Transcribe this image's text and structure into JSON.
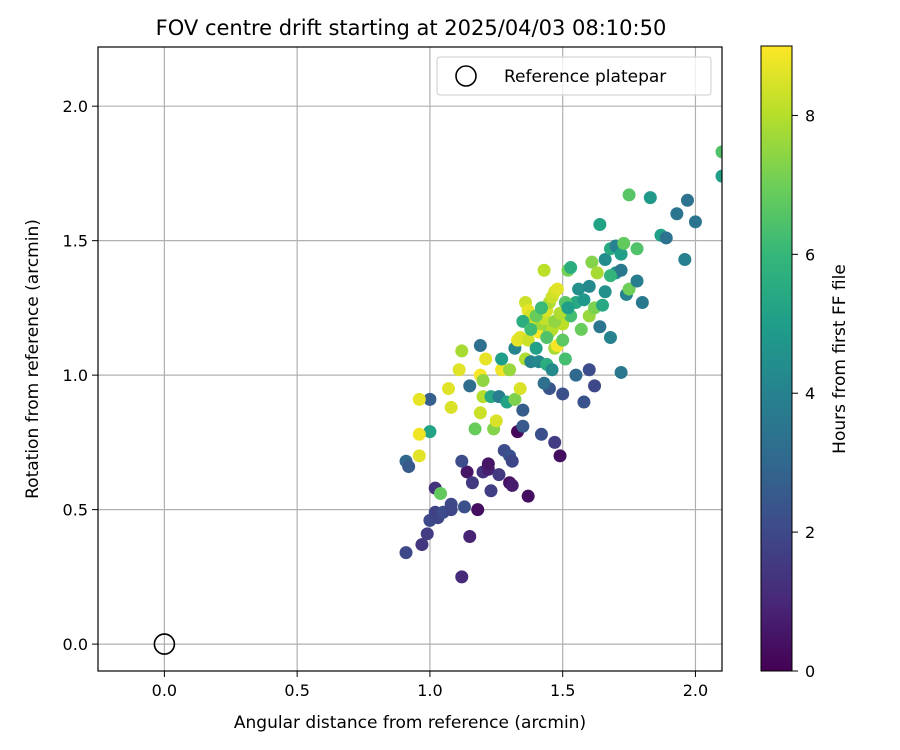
{
  "chart_data": {
    "type": "scatter",
    "title": "FOV centre drift starting at 2025/04/03 08:10:50",
    "xlabel": "Angular distance from reference (arcmin)",
    "ylabel": "Rotation from reference (arcmin)",
    "xlim": [
      -0.25,
      2.1
    ],
    "ylim": [
      -0.1,
      2.22
    ],
    "xticks": [
      0.0,
      0.5,
      1.0,
      1.5,
      2.0
    ],
    "yticks": [
      0.0,
      0.5,
      1.0,
      1.5,
      2.0
    ],
    "xtick_labels": [
      "0.0",
      "0.5",
      "1.0",
      "1.5",
      "2.0"
    ],
    "ytick_labels": [
      "0.0",
      "0.5",
      "1.0",
      "1.5",
      "2.0"
    ],
    "grid": true,
    "colormap": "viridis",
    "colorbar": {
      "label": "Hours from first FF file",
      "range": [
        0,
        9
      ],
      "ticks": [
        0,
        2,
        4,
        6,
        8
      ],
      "tick_labels": [
        "0",
        "2",
        "4",
        "6",
        "8"
      ]
    },
    "legend": {
      "position": "top-right",
      "entries": [
        "Reference platepar"
      ]
    },
    "reference_point": {
      "x": 0.0,
      "y": 0.0
    },
    "points": [
      [
        0.91,
        0.34,
        2.0
      ],
      [
        0.97,
        0.37,
        1.4
      ],
      [
        0.99,
        0.41,
        1.6
      ],
      [
        1.02,
        0.58,
        1.3
      ],
      [
        1.0,
        0.46,
        2.0
      ],
      [
        1.03,
        0.47,
        1.9
      ],
      [
        1.02,
        0.49,
        1.8
      ],
      [
        1.05,
        0.49,
        2.1
      ],
      [
        1.08,
        0.52,
        2.0
      ],
      [
        1.08,
        0.5,
        1.9
      ],
      [
        1.13,
        0.51,
        2.2
      ],
      [
        1.18,
        0.5,
        0.3
      ],
      [
        1.12,
        0.25,
        1.1
      ],
      [
        1.15,
        0.4,
        0.9
      ],
      [
        1.14,
        0.64,
        0.5
      ],
      [
        1.16,
        0.6,
        1.5
      ],
      [
        1.12,
        0.68,
        2.1
      ],
      [
        1.2,
        0.64,
        1.3
      ],
      [
        1.22,
        0.65,
        0.8
      ],
      [
        1.22,
        0.67,
        0.5
      ],
      [
        1.23,
        0.57,
        1.7
      ],
      [
        1.26,
        0.63,
        1.5
      ],
      [
        1.28,
        0.72,
        2.1
      ],
      [
        1.3,
        0.7,
        2.3
      ],
      [
        1.31,
        0.68,
        1.9
      ],
      [
        1.3,
        0.6,
        0.4
      ],
      [
        1.31,
        0.59,
        0.7
      ],
      [
        1.37,
        0.55,
        0.3
      ],
      [
        1.33,
        0.79,
        0.2
      ],
      [
        1.35,
        0.81,
        2.5
      ],
      [
        1.42,
        0.78,
        2.2
      ],
      [
        1.47,
        0.75,
        1.6
      ],
      [
        1.49,
        0.7,
        0.3
      ],
      [
        1.35,
        0.87,
        2.6
      ],
      [
        1.45,
        0.95,
        2.4
      ],
      [
        1.5,
        0.93,
        2.2
      ],
      [
        1.58,
        0.9,
        2.3
      ],
      [
        1.62,
        0.96,
        2.0
      ],
      [
        1.55,
        1.0,
        3.0
      ],
      [
        1.6,
        1.02,
        2.1
      ],
      [
        1.72,
        1.01,
        3.6
      ],
      [
        0.91,
        0.68,
        3.0
      ],
      [
        0.92,
        0.66,
        2.5
      ],
      [
        1.0,
        0.91,
        2.7
      ],
      [
        1.0,
        0.79,
        5.2
      ],
      [
        0.96,
        0.7,
        8.6
      ],
      [
        0.96,
        0.78,
        8.8
      ],
      [
        0.96,
        0.91,
        8.7
      ],
      [
        1.04,
        0.56,
        6.8
      ],
      [
        1.07,
        0.95,
        8.6
      ],
      [
        1.08,
        0.88,
        8.5
      ],
      [
        1.11,
        1.02,
        8.6
      ],
      [
        1.12,
        1.09,
        7.8
      ],
      [
        1.15,
        0.96,
        3.2
      ],
      [
        1.17,
        0.8,
        6.9
      ],
      [
        1.19,
        0.86,
        8.3
      ],
      [
        1.2,
        0.92,
        8.0
      ],
      [
        1.19,
        1.0,
        8.9
      ],
      [
        1.2,
        0.98,
        7.5
      ],
      [
        1.21,
        1.06,
        8.7
      ],
      [
        1.19,
        1.11,
        3.3
      ],
      [
        1.23,
        0.92,
        5.4
      ],
      [
        1.24,
        0.8,
        7.3
      ],
      [
        1.25,
        0.83,
        8.5
      ],
      [
        1.26,
        0.92,
        3.8
      ],
      [
        1.27,
        1.02,
        8.8
      ],
      [
        1.27,
        1.06,
        5.0
      ],
      [
        1.29,
        0.9,
        5.2
      ],
      [
        1.3,
        1.02,
        7.6
      ],
      [
        1.32,
        0.91,
        7.2
      ],
      [
        1.32,
        1.1,
        4.1
      ],
      [
        1.33,
        1.13,
        8.7
      ],
      [
        1.34,
        1.14,
        8.6
      ],
      [
        1.34,
        0.95,
        8.5
      ],
      [
        1.36,
        1.06,
        7.9
      ],
      [
        1.37,
        1.13,
        8.3
      ],
      [
        1.38,
        1.05,
        4.0
      ],
      [
        1.4,
        1.1,
        5.1
      ],
      [
        1.41,
        1.05,
        4.2
      ],
      [
        1.43,
        0.97,
        3.3
      ],
      [
        1.44,
        1.04,
        5.6
      ],
      [
        1.46,
        1.02,
        4.3
      ],
      [
        1.47,
        1.1,
        7.8
      ],
      [
        1.48,
        1.11,
        8.9
      ],
      [
        1.5,
        1.19,
        8.1
      ],
      [
        1.51,
        1.06,
        6.3
      ],
      [
        1.53,
        1.22,
        6.3
      ],
      [
        1.55,
        1.27,
        5.4
      ],
      [
        1.57,
        1.17,
        6.9
      ],
      [
        1.6,
        1.22,
        7.6
      ],
      [
        1.62,
        1.25,
        7.2
      ],
      [
        1.64,
        1.18,
        3.5
      ],
      [
        1.65,
        1.26,
        5.4
      ],
      [
        1.66,
        1.31,
        4.5
      ],
      [
        1.68,
        1.14,
        4.0
      ],
      [
        1.7,
        1.38,
        4.4
      ],
      [
        1.72,
        1.39,
        3.6
      ],
      [
        1.74,
        1.3,
        4.0
      ],
      [
        1.75,
        1.32,
        7.0
      ],
      [
        1.78,
        1.35,
        3.8
      ],
      [
        1.8,
        1.27,
        3.6
      ],
      [
        1.83,
        1.66,
        4.8
      ],
      [
        1.87,
        1.52,
        5.1
      ],
      [
        1.89,
        1.51,
        3.4
      ],
      [
        1.93,
        1.6,
        3.5
      ],
      [
        1.96,
        1.43,
        3.9
      ],
      [
        1.97,
        1.65,
        3.4
      ],
      [
        2.0,
        1.57,
        3.5
      ],
      [
        1.56,
        1.32,
        4.5
      ],
      [
        1.58,
        1.28,
        4.8
      ],
      [
        1.6,
        1.33,
        4.2
      ],
      [
        1.61,
        1.42,
        7.3
      ],
      [
        1.63,
        1.38,
        7.8
      ],
      [
        1.64,
        1.56,
        5.2
      ],
      [
        1.66,
        1.43,
        4.4
      ],
      [
        1.68,
        1.37,
        5.9
      ],
      [
        1.68,
        1.47,
        5.5
      ],
      [
        1.7,
        1.48,
        4.0
      ],
      [
        1.72,
        1.45,
        5.1
      ],
      [
        1.73,
        1.49,
        6.8
      ],
      [
        1.75,
        1.67,
        6.6
      ],
      [
        1.78,
        1.47,
        6.5
      ],
      [
        1.36,
        1.27,
        8.3
      ],
      [
        1.37,
        1.24,
        8.7
      ],
      [
        1.38,
        1.22,
        8.4
      ],
      [
        1.39,
        1.2,
        8.1
      ],
      [
        1.4,
        1.18,
        8.6
      ],
      [
        1.41,
        1.16,
        8.9
      ],
      [
        1.42,
        1.19,
        7.7
      ],
      [
        1.43,
        1.21,
        8.2
      ],
      [
        1.44,
        1.24,
        8.5
      ],
      [
        1.45,
        1.27,
        7.9
      ],
      [
        1.46,
        1.29,
        8.3
      ],
      [
        1.47,
        1.31,
        8.4
      ],
      [
        1.48,
        1.32,
        8.6
      ],
      [
        1.43,
        1.39,
        8.1
      ],
      [
        1.45,
        1.16,
        7.4
      ],
      [
        1.46,
        1.17,
        8.0
      ],
      [
        1.47,
        1.2,
        7.5
      ],
      [
        1.49,
        1.23,
        7.9
      ],
      [
        1.51,
        1.27,
        6.6
      ],
      [
        1.52,
        1.39,
        7.1
      ],
      [
        1.53,
        1.4,
        5.6
      ],
      [
        1.35,
        1.2,
        5.6
      ],
      [
        1.38,
        1.17,
        6.2
      ],
      [
        1.4,
        1.22,
        6.9
      ],
      [
        1.42,
        1.25,
        6.1
      ],
      [
        1.44,
        1.14,
        6.5
      ],
      [
        1.5,
        1.13,
        6.7
      ],
      [
        1.52,
        1.25,
        5.0
      ],
      [
        2.1,
        1.83,
        6.5
      ],
      [
        2.1,
        1.74,
        5.0
      ]
    ]
  }
}
